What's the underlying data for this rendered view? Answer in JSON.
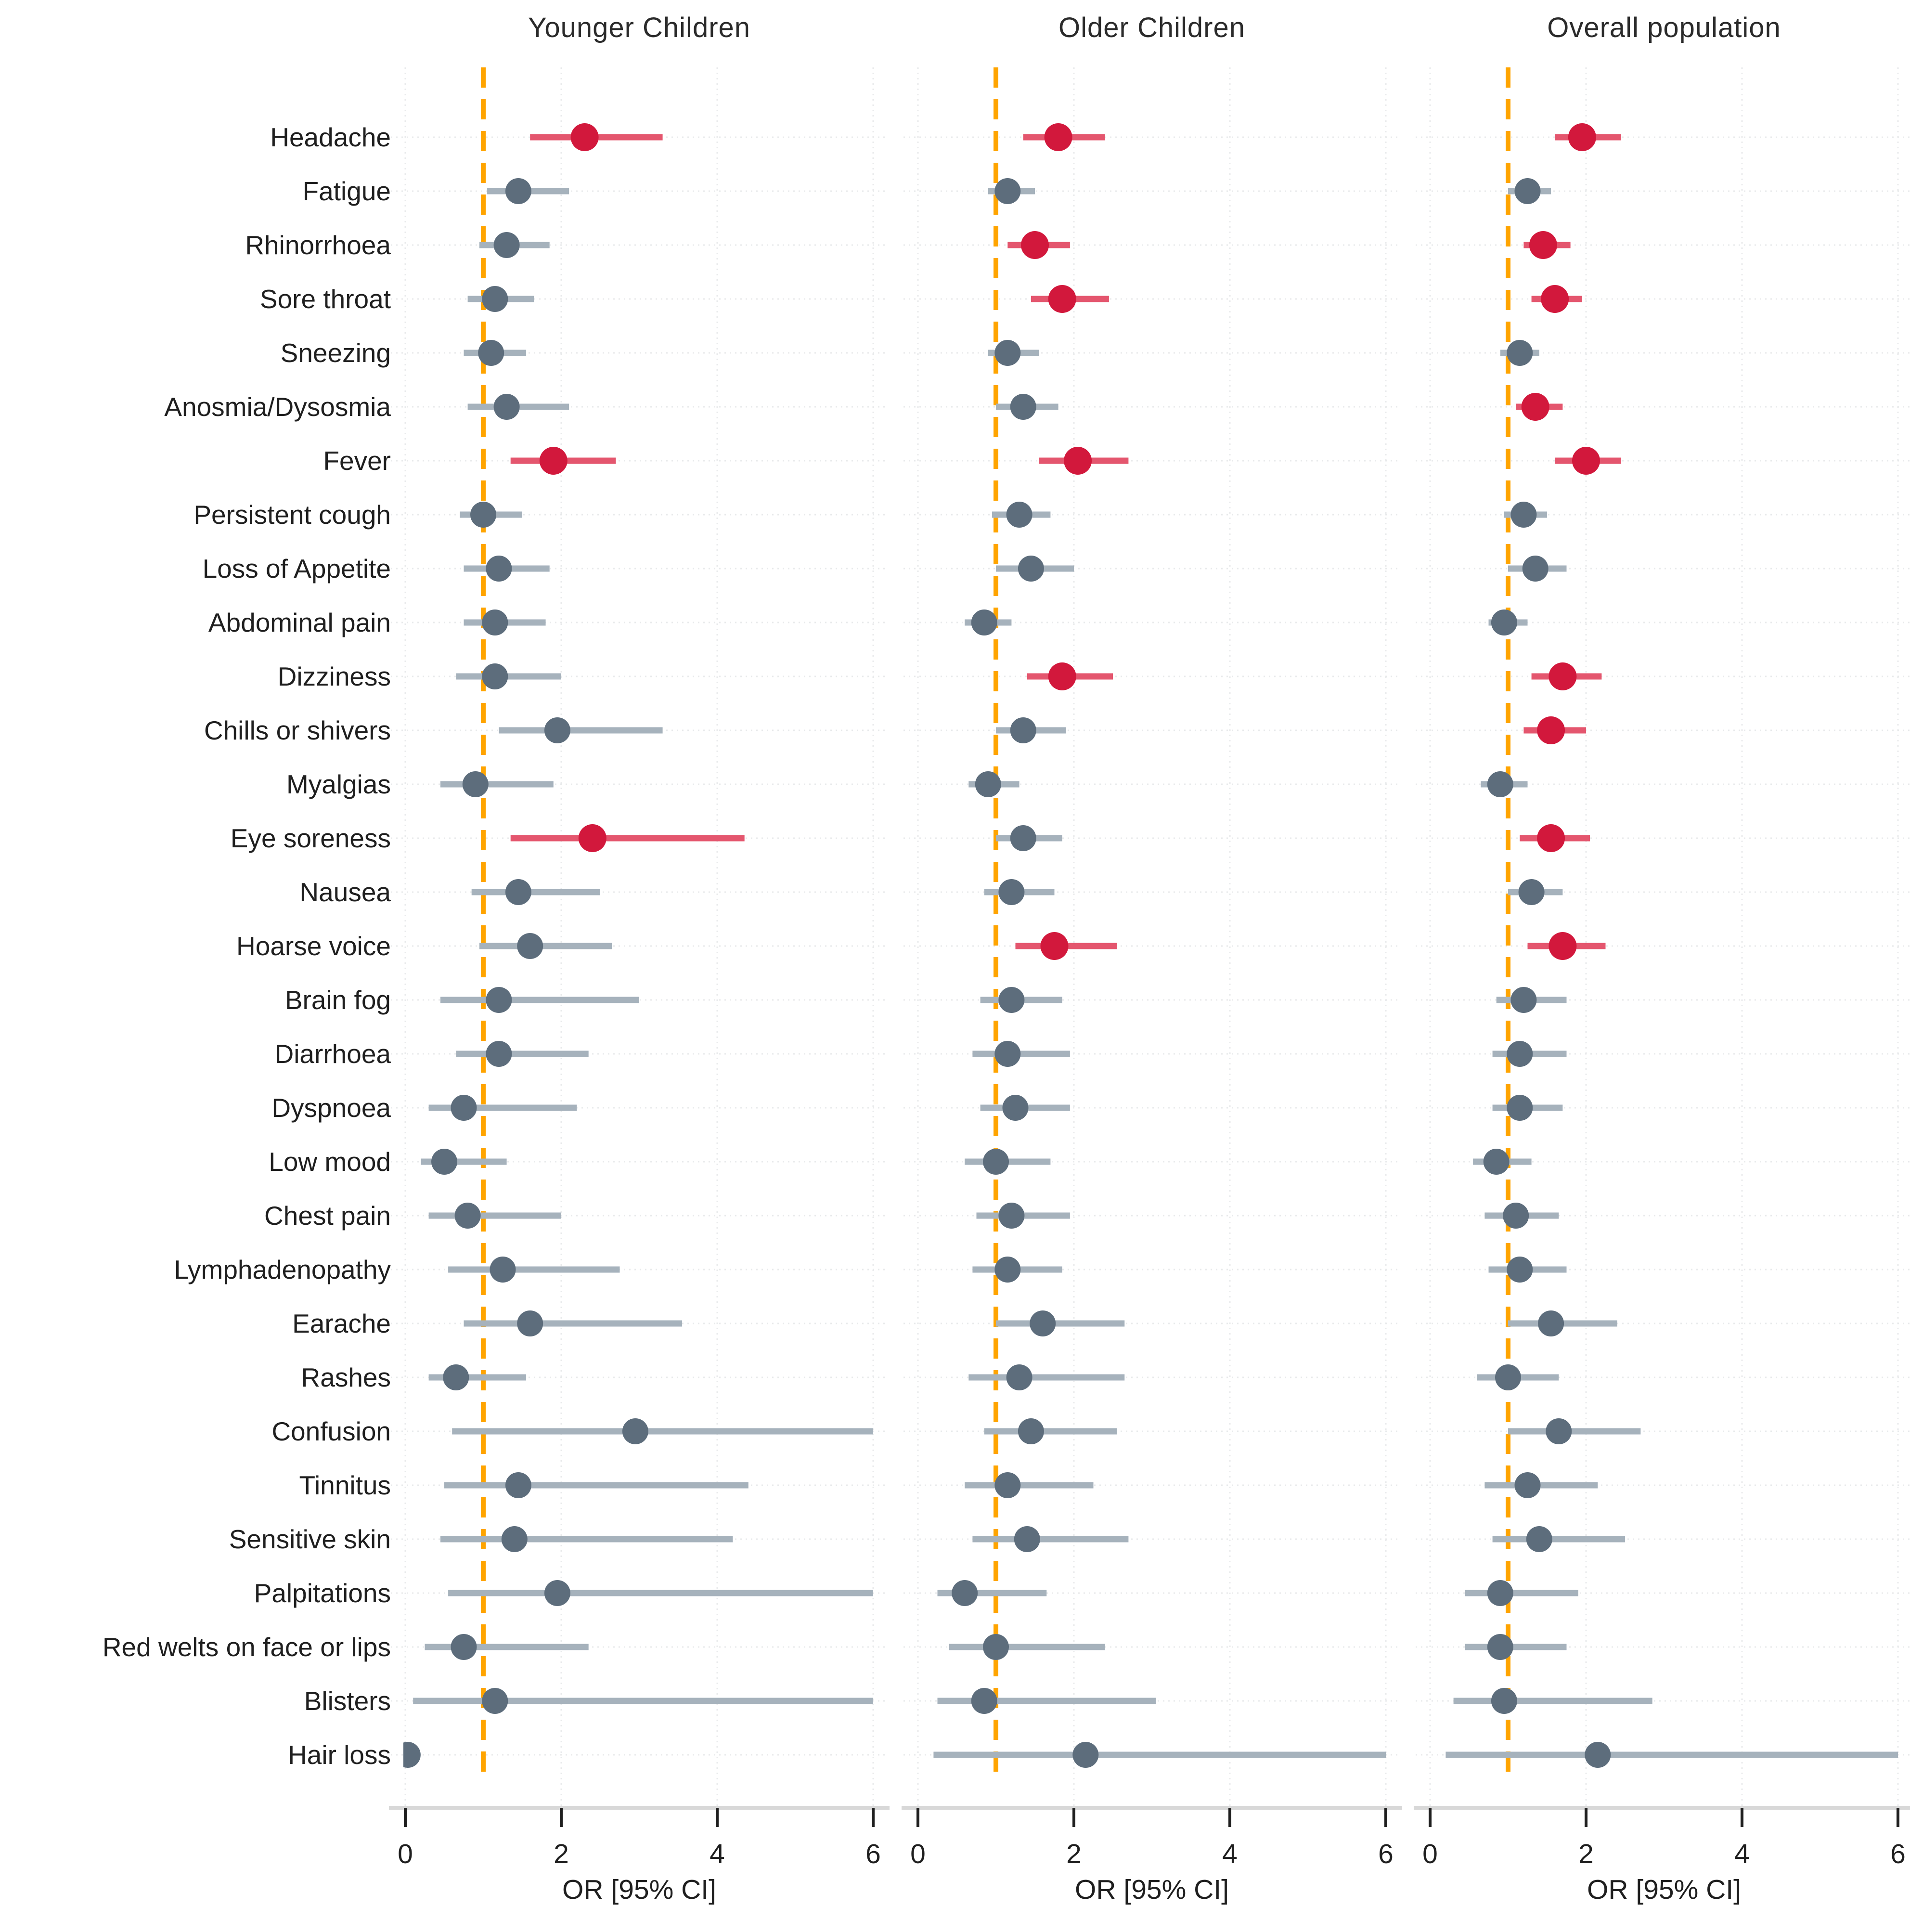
{
  "chart_data": {
    "type": "forest_plot",
    "xlabel": "OR [95% CI]",
    "x_ticks": [
      0,
      2,
      4,
      6
    ],
    "xlim": [
      0,
      6
    ],
    "reference_line_x": 1,
    "grid": "light dotted vertical at ticks, dotted horizontal per row",
    "categories": [
      "Headache",
      "Fatigue",
      "Rhinorrhoea",
      "Sore throat",
      "Sneezing",
      "Anosmia/Dysosmia",
      "Fever",
      "Persistent cough",
      "Loss of Appetite",
      "Abdominal pain",
      "Dizziness",
      "Chills or shivers",
      "Myalgias",
      "Eye soreness",
      "Nausea",
      "Hoarse voice",
      "Brain fog",
      "Diarrhoea",
      "Dyspnoea",
      "Low mood",
      "Chest pain",
      "Lymphadenopathy",
      "Earache",
      "Rashes",
      "Confusion",
      "Tinnitus",
      "Sensitive skin",
      "Palpitations",
      "Red welts on face or lips",
      "Blisters",
      "Hair loss"
    ],
    "colors": {
      "significant_point": "#D2183C",
      "significant_ci": "#E4566E",
      "nonsignificant_point": "#5D6D7C",
      "nonsignificant_ci": "#A6B2BC",
      "reference_line": "#FFA400",
      "gridline": "#E8EAEB",
      "axis_line": "#D8D8D8",
      "text": "#1f1f1f"
    },
    "panels": [
      {
        "title": "Younger Children",
        "points": [
          {
            "or": 2.3,
            "lo": 1.6,
            "hi": 3.3,
            "sig": true
          },
          {
            "or": 1.45,
            "lo": 1.05,
            "hi": 2.1,
            "sig": false
          },
          {
            "or": 1.3,
            "lo": 0.95,
            "hi": 1.85,
            "sig": false
          },
          {
            "or": 1.15,
            "lo": 0.8,
            "hi": 1.65,
            "sig": false
          },
          {
            "or": 1.1,
            "lo": 0.75,
            "hi": 1.55,
            "sig": false
          },
          {
            "or": 1.3,
            "lo": 0.8,
            "hi": 2.1,
            "sig": false
          },
          {
            "or": 1.9,
            "lo": 1.35,
            "hi": 2.7,
            "sig": true
          },
          {
            "or": 1.0,
            "lo": 0.7,
            "hi": 1.5,
            "sig": false
          },
          {
            "or": 1.2,
            "lo": 0.75,
            "hi": 1.85,
            "sig": false
          },
          {
            "or": 1.15,
            "lo": 0.75,
            "hi": 1.8,
            "sig": false
          },
          {
            "or": 1.15,
            "lo": 0.65,
            "hi": 2.0,
            "sig": false
          },
          {
            "or": 1.95,
            "lo": 1.2,
            "hi": 3.3,
            "sig": false
          },
          {
            "or": 0.9,
            "lo": 0.45,
            "hi": 1.9,
            "sig": false
          },
          {
            "or": 2.4,
            "lo": 1.35,
            "hi": 4.35,
            "sig": true
          },
          {
            "or": 1.45,
            "lo": 0.85,
            "hi": 2.5,
            "sig": false
          },
          {
            "or": 1.6,
            "lo": 0.95,
            "hi": 2.65,
            "sig": false
          },
          {
            "or": 1.2,
            "lo": 0.45,
            "hi": 3.0,
            "sig": false
          },
          {
            "or": 1.2,
            "lo": 0.65,
            "hi": 2.35,
            "sig": false
          },
          {
            "or": 0.75,
            "lo": 0.3,
            "hi": 2.2,
            "sig": false
          },
          {
            "or": 0.5,
            "lo": 0.2,
            "hi": 1.3,
            "sig": false
          },
          {
            "or": 0.8,
            "lo": 0.3,
            "hi": 2.0,
            "sig": false
          },
          {
            "or": 1.25,
            "lo": 0.55,
            "hi": 2.75,
            "sig": false
          },
          {
            "or": 1.6,
            "lo": 0.75,
            "hi": 3.55,
            "sig": false
          },
          {
            "or": 0.65,
            "lo": 0.3,
            "hi": 1.55,
            "sig": false
          },
          {
            "or": 2.95,
            "lo": 0.6,
            "hi": 6.0,
            "sig": false
          },
          {
            "or": 1.45,
            "lo": 0.5,
            "hi": 4.4,
            "sig": false
          },
          {
            "or": 1.4,
            "lo": 0.45,
            "hi": 4.2,
            "sig": false
          },
          {
            "or": 1.95,
            "lo": 0.55,
            "hi": 6.0,
            "sig": false
          },
          {
            "or": 0.75,
            "lo": 0.25,
            "hi": 2.35,
            "sig": false
          },
          {
            "or": 1.15,
            "lo": 0.1,
            "hi": 6.0,
            "sig": false
          },
          {
            "or": 0.03,
            "lo": 0.0,
            "hi": 0.1,
            "sig": false
          }
        ]
      },
      {
        "title": "Older Children",
        "points": [
          {
            "or": 1.8,
            "lo": 1.35,
            "hi": 2.4,
            "sig": true
          },
          {
            "or": 1.15,
            "lo": 0.9,
            "hi": 1.5,
            "sig": false
          },
          {
            "or": 1.5,
            "lo": 1.15,
            "hi": 1.95,
            "sig": true
          },
          {
            "or": 1.85,
            "lo": 1.45,
            "hi": 2.45,
            "sig": true
          },
          {
            "or": 1.15,
            "lo": 0.9,
            "hi": 1.55,
            "sig": false
          },
          {
            "or": 1.35,
            "lo": 1.0,
            "hi": 1.8,
            "sig": false
          },
          {
            "or": 2.05,
            "lo": 1.55,
            "hi": 2.7,
            "sig": true
          },
          {
            "or": 1.3,
            "lo": 0.95,
            "hi": 1.7,
            "sig": false
          },
          {
            "or": 1.45,
            "lo": 1.0,
            "hi": 2.0,
            "sig": false
          },
          {
            "or": 0.85,
            "lo": 0.6,
            "hi": 1.2,
            "sig": false
          },
          {
            "or": 1.85,
            "lo": 1.4,
            "hi": 2.5,
            "sig": true
          },
          {
            "or": 1.35,
            "lo": 1.0,
            "hi": 1.9,
            "sig": false
          },
          {
            "or": 0.9,
            "lo": 0.65,
            "hi": 1.3,
            "sig": false
          },
          {
            "or": 1.35,
            "lo": 1.0,
            "hi": 1.85,
            "sig": false
          },
          {
            "or": 1.2,
            "lo": 0.85,
            "hi": 1.75,
            "sig": false
          },
          {
            "or": 1.75,
            "lo": 1.25,
            "hi": 2.55,
            "sig": true
          },
          {
            "or": 1.2,
            "lo": 0.8,
            "hi": 1.85,
            "sig": false
          },
          {
            "or": 1.15,
            "lo": 0.7,
            "hi": 1.95,
            "sig": false
          },
          {
            "or": 1.25,
            "lo": 0.8,
            "hi": 1.95,
            "sig": false
          },
          {
            "or": 1.0,
            "lo": 0.6,
            "hi": 1.7,
            "sig": false
          },
          {
            "or": 1.2,
            "lo": 0.75,
            "hi": 1.95,
            "sig": false
          },
          {
            "or": 1.15,
            "lo": 0.7,
            "hi": 1.85,
            "sig": false
          },
          {
            "or": 1.6,
            "lo": 1.0,
            "hi": 2.65,
            "sig": false
          },
          {
            "or": 1.3,
            "lo": 0.65,
            "hi": 2.65,
            "sig": false
          },
          {
            "or": 1.45,
            "lo": 0.85,
            "hi": 2.55,
            "sig": false
          },
          {
            "or": 1.15,
            "lo": 0.6,
            "hi": 2.25,
            "sig": false
          },
          {
            "or": 1.4,
            "lo": 0.7,
            "hi": 2.7,
            "sig": false
          },
          {
            "or": 0.6,
            "lo": 0.25,
            "hi": 1.65,
            "sig": false
          },
          {
            "or": 1.0,
            "lo": 0.4,
            "hi": 2.4,
            "sig": false
          },
          {
            "or": 0.85,
            "lo": 0.25,
            "hi": 3.05,
            "sig": false
          },
          {
            "or": 2.15,
            "lo": 0.2,
            "hi": 6.0,
            "sig": false
          }
        ]
      },
      {
        "title": "Overall population",
        "points": [
          {
            "or": 1.95,
            "lo": 1.6,
            "hi": 2.45,
            "sig": true
          },
          {
            "or": 1.25,
            "lo": 1.0,
            "hi": 1.55,
            "sig": false
          },
          {
            "or": 1.45,
            "lo": 1.2,
            "hi": 1.8,
            "sig": true
          },
          {
            "or": 1.6,
            "lo": 1.3,
            "hi": 1.95,
            "sig": true
          },
          {
            "or": 1.15,
            "lo": 0.9,
            "hi": 1.4,
            "sig": false
          },
          {
            "or": 1.35,
            "lo": 1.1,
            "hi": 1.7,
            "sig": true
          },
          {
            "or": 2.0,
            "lo": 1.6,
            "hi": 2.45,
            "sig": true
          },
          {
            "or": 1.2,
            "lo": 0.95,
            "hi": 1.5,
            "sig": false
          },
          {
            "or": 1.35,
            "lo": 1.0,
            "hi": 1.75,
            "sig": false
          },
          {
            "or": 0.95,
            "lo": 0.75,
            "hi": 1.25,
            "sig": false
          },
          {
            "or": 1.7,
            "lo": 1.3,
            "hi": 2.2,
            "sig": true
          },
          {
            "or": 1.55,
            "lo": 1.2,
            "hi": 2.0,
            "sig": true
          },
          {
            "or": 0.9,
            "lo": 0.65,
            "hi": 1.25,
            "sig": false
          },
          {
            "or": 1.55,
            "lo": 1.15,
            "hi": 2.05,
            "sig": true
          },
          {
            "or": 1.3,
            "lo": 1.0,
            "hi": 1.7,
            "sig": false
          },
          {
            "or": 1.7,
            "lo": 1.25,
            "hi": 2.25,
            "sig": true
          },
          {
            "or": 1.2,
            "lo": 0.85,
            "hi": 1.75,
            "sig": false
          },
          {
            "or": 1.15,
            "lo": 0.8,
            "hi": 1.75,
            "sig": false
          },
          {
            "or": 1.15,
            "lo": 0.8,
            "hi": 1.7,
            "sig": false
          },
          {
            "or": 0.85,
            "lo": 0.55,
            "hi": 1.3,
            "sig": false
          },
          {
            "or": 1.1,
            "lo": 0.7,
            "hi": 1.65,
            "sig": false
          },
          {
            "or": 1.15,
            "lo": 0.75,
            "hi": 1.75,
            "sig": false
          },
          {
            "or": 1.55,
            "lo": 1.0,
            "hi": 2.4,
            "sig": false
          },
          {
            "or": 1.0,
            "lo": 0.6,
            "hi": 1.65,
            "sig": false
          },
          {
            "or": 1.65,
            "lo": 1.0,
            "hi": 2.7,
            "sig": false
          },
          {
            "or": 1.25,
            "lo": 0.7,
            "hi": 2.15,
            "sig": false
          },
          {
            "or": 1.4,
            "lo": 0.8,
            "hi": 2.5,
            "sig": false
          },
          {
            "or": 0.9,
            "lo": 0.45,
            "hi": 1.9,
            "sig": false
          },
          {
            "or": 0.9,
            "lo": 0.45,
            "hi": 1.75,
            "sig": false
          },
          {
            "or": 0.95,
            "lo": 0.3,
            "hi": 2.85,
            "sig": false
          },
          {
            "or": 2.15,
            "lo": 0.2,
            "hi": 6.0,
            "sig": false
          }
        ]
      }
    ]
  }
}
